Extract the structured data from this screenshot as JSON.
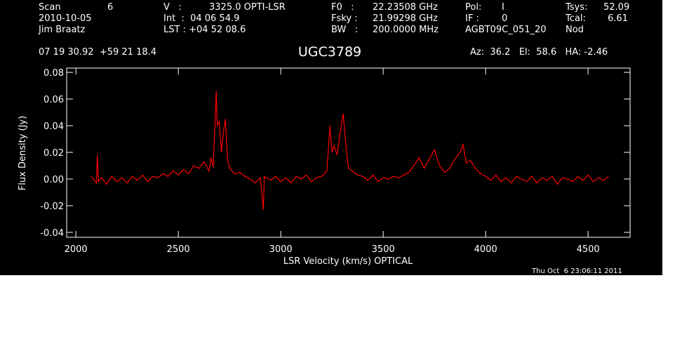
{
  "header": [
    "Scan",
    "6",
    "V   :",
    "3325.0 OPTI-LSR",
    "F0   :",
    "22.23508 GHz",
    "Pol:",
    "I",
    "Tsys:",
    "52.09",
    "2010-10-05",
    "Int  :  04 06 54.9",
    "Fsky :",
    "21.99298 GHz",
    "IF :",
    "0",
    "Tcal:",
    "6.61",
    "Jim Braatz",
    "LST : +04 52 08.6",
    "BW   :",
    "200.0000 MHz",
    "AGBT09C_051_20",
    "Nod",
    "07 19 30.92  +59 21 18.4",
    "Az:  36.2   El:  58.6   HA: -2.46"
  ],
  "timestamp": "Thu Oct  6 23:06:11 2011",
  "chart_data": {
    "type": "line",
    "title": "UGC3789",
    "x_label": "LSR Velocity (km/s) OPTICAL",
    "y_label": "Flux Density (Jy)",
    "x": [
      2075,
      2100,
      2105,
      2110,
      2125,
      2150,
      2175,
      2200,
      2225,
      2250,
      2275,
      2300,
      2325,
      2350,
      2375,
      2400,
      2425,
      2450,
      2475,
      2500,
      2525,
      2550,
      2575,
      2600,
      2625,
      2650,
      2660,
      2670,
      2680,
      2685,
      2690,
      2700,
      2710,
      2720,
      2730,
      2740,
      2750,
      2775,
      2800,
      2825,
      2850,
      2875,
      2900,
      2915,
      2920,
      2950,
      2975,
      3000,
      3025,
      3050,
      3075,
      3100,
      3125,
      3150,
      3175,
      3200,
      3225,
      3240,
      3250,
      3260,
      3275,
      3290,
      3305,
      3315,
      3330,
      3350,
      3375,
      3400,
      3425,
      3450,
      3475,
      3500,
      3525,
      3550,
      3575,
      3600,
      3625,
      3650,
      3675,
      3700,
      3725,
      3750,
      3775,
      3800,
      3825,
      3850,
      3875,
      3890,
      3905,
      3925,
      3950,
      3975,
      4000,
      4025,
      4050,
      4075,
      4100,
      4125,
      4150,
      4175,
      4200,
      4225,
      4250,
      4275,
      4300,
      4325,
      4350,
      4375,
      4400,
      4425,
      4450,
      4475,
      4500,
      4525,
      4550,
      4575,
      4600
    ],
    "values": [
      0.002,
      -0.003,
      0.018,
      -0.002,
      0.001,
      -0.004,
      0.002,
      -0.002,
      0.001,
      -0.003,
      0.002,
      -0.001,
      0.003,
      -0.002,
      0.002,
      0.001,
      0.004,
      0.002,
      0.006,
      0.003,
      0.007,
      0.004,
      0.01,
      0.008,
      0.013,
      0.006,
      0.016,
      0.009,
      0.045,
      0.066,
      0.04,
      0.043,
      0.02,
      0.035,
      0.045,
      0.015,
      0.008,
      0.004,
      0.005,
      0.002,
      0.0,
      -0.003,
      0.001,
      -0.023,
      0.002,
      -0.001,
      0.002,
      -0.002,
      0.001,
      -0.003,
      0.002,
      0.0,
      0.003,
      -0.002,
      0.001,
      0.002,
      0.006,
      0.04,
      0.02,
      0.025,
      0.018,
      0.035,
      0.049,
      0.03,
      0.008,
      0.006,
      0.003,
      0.002,
      -0.001,
      0.003,
      -0.002,
      0.001,
      0.0,
      0.002,
      0.001,
      0.003,
      0.005,
      0.01,
      0.016,
      0.008,
      0.015,
      0.022,
      0.01,
      0.005,
      0.008,
      0.015,
      0.02,
      0.026,
      0.012,
      0.014,
      0.008,
      0.004,
      0.002,
      -0.001,
      0.003,
      -0.002,
      0.001,
      -0.003,
      0.002,
      0.0,
      -0.002,
      0.002,
      -0.003,
      0.001,
      -0.001,
      0.002,
      -0.004,
      0.001,
      0.0,
      -0.002,
      0.002,
      -0.001,
      0.003,
      -0.002,
      0.001,
      -0.001,
      0.002
    ],
    "color": "#ff0000",
    "xlim": [
      1955,
      4705
    ],
    "xticks": [
      2000,
      2500,
      3000,
      3500,
      4000,
      4500
    ],
    "ylim": [
      -0.0437,
      0.0832
    ],
    "yticks": [
      -0.04,
      -0.02,
      {
        "value": 0,
        "label": "0.00"
      },
      0.02,
      0.04,
      0.06,
      0.08
    ]
  }
}
